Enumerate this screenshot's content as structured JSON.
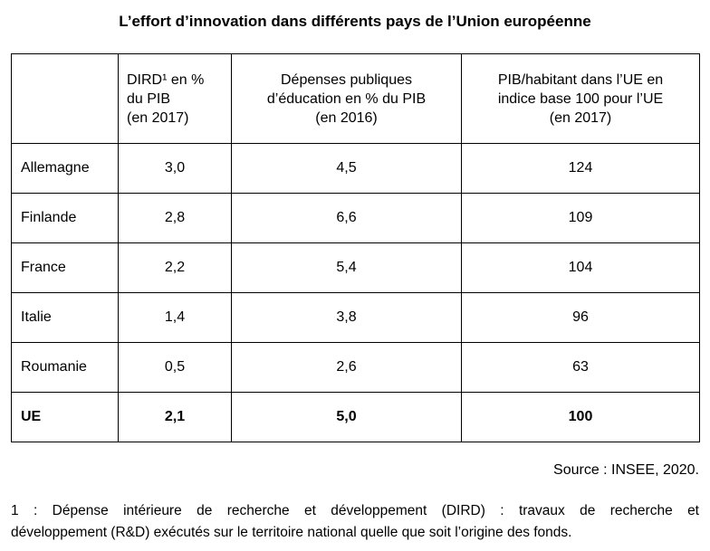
{
  "title": "L’effort d’innovation dans différents pays de l’Union européenne",
  "table": {
    "headers": {
      "country": "",
      "dird": "DIRD¹ en %\ndu PIB\n(en 2017)",
      "education": "Dépenses publiques\nd’éducation en % du PIB\n(en 2016)",
      "pib": "PIB/habitant dans l’UE en\nindice base 100 pour l’UE\n(en 2017)"
    },
    "rows": [
      {
        "country": "Allemagne",
        "dird": "3,0",
        "education": "4,5",
        "pib": "124"
      },
      {
        "country": "Finlande",
        "dird": "2,8",
        "education": "6,6",
        "pib": "109"
      },
      {
        "country": "France",
        "dird": "2,2",
        "education": "5,4",
        "pib": "104"
      },
      {
        "country": "Italie",
        "dird": "1,4",
        "education": "3,8",
        "pib": "96"
      },
      {
        "country": "Roumanie",
        "dird": "0,5",
        "education": "2,6",
        "pib": "63"
      },
      {
        "country": "UE",
        "dird": "2,1",
        "education": "5,0",
        "pib": "100"
      }
    ]
  },
  "source": "Source : INSEE, 2020.",
  "footnote": {
    "lines": [
      "1 : Dépense intérieure de recherche et développement (DIRD) : travaux de recherche et",
      "développement (R&D) exécutés sur le territoire national quelle que soit l’origine des fonds."
    ]
  },
  "colors": {
    "text": "#000000",
    "background": "#ffffff",
    "border": "#000000"
  }
}
